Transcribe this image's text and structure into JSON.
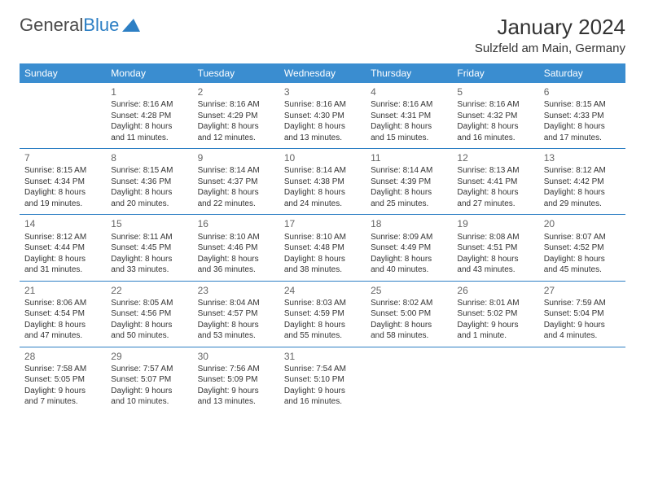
{
  "logo": {
    "textGray": "General",
    "textBlue": "Blue"
  },
  "title": "January 2024",
  "location": "Sulzfeld am Main, Germany",
  "colors": {
    "headerBg": "#3a8dd0",
    "headerText": "#ffffff",
    "cellBorder": "#2d7fc4",
    "dayNum": "#666666",
    "bodyText": "#333333"
  },
  "weekdays": [
    "Sunday",
    "Monday",
    "Tuesday",
    "Wednesday",
    "Thursday",
    "Friday",
    "Saturday"
  ],
  "weeks": [
    [
      null,
      {
        "n": "1",
        "sr": "8:16 AM",
        "ss": "4:28 PM",
        "dl": "8 hours and 11 minutes."
      },
      {
        "n": "2",
        "sr": "8:16 AM",
        "ss": "4:29 PM",
        "dl": "8 hours and 12 minutes."
      },
      {
        "n": "3",
        "sr": "8:16 AM",
        "ss": "4:30 PM",
        "dl": "8 hours and 13 minutes."
      },
      {
        "n": "4",
        "sr": "8:16 AM",
        "ss": "4:31 PM",
        "dl": "8 hours and 15 minutes."
      },
      {
        "n": "5",
        "sr": "8:16 AM",
        "ss": "4:32 PM",
        "dl": "8 hours and 16 minutes."
      },
      {
        "n": "6",
        "sr": "8:15 AM",
        "ss": "4:33 PM",
        "dl": "8 hours and 17 minutes."
      }
    ],
    [
      {
        "n": "7",
        "sr": "8:15 AM",
        "ss": "4:34 PM",
        "dl": "8 hours and 19 minutes."
      },
      {
        "n": "8",
        "sr": "8:15 AM",
        "ss": "4:36 PM",
        "dl": "8 hours and 20 minutes."
      },
      {
        "n": "9",
        "sr": "8:14 AM",
        "ss": "4:37 PM",
        "dl": "8 hours and 22 minutes."
      },
      {
        "n": "10",
        "sr": "8:14 AM",
        "ss": "4:38 PM",
        "dl": "8 hours and 24 minutes."
      },
      {
        "n": "11",
        "sr": "8:14 AM",
        "ss": "4:39 PM",
        "dl": "8 hours and 25 minutes."
      },
      {
        "n": "12",
        "sr": "8:13 AM",
        "ss": "4:41 PM",
        "dl": "8 hours and 27 minutes."
      },
      {
        "n": "13",
        "sr": "8:12 AM",
        "ss": "4:42 PM",
        "dl": "8 hours and 29 minutes."
      }
    ],
    [
      {
        "n": "14",
        "sr": "8:12 AM",
        "ss": "4:44 PM",
        "dl": "8 hours and 31 minutes."
      },
      {
        "n": "15",
        "sr": "8:11 AM",
        "ss": "4:45 PM",
        "dl": "8 hours and 33 minutes."
      },
      {
        "n": "16",
        "sr": "8:10 AM",
        "ss": "4:46 PM",
        "dl": "8 hours and 36 minutes."
      },
      {
        "n": "17",
        "sr": "8:10 AM",
        "ss": "4:48 PM",
        "dl": "8 hours and 38 minutes."
      },
      {
        "n": "18",
        "sr": "8:09 AM",
        "ss": "4:49 PM",
        "dl": "8 hours and 40 minutes."
      },
      {
        "n": "19",
        "sr": "8:08 AM",
        "ss": "4:51 PM",
        "dl": "8 hours and 43 minutes."
      },
      {
        "n": "20",
        "sr": "8:07 AM",
        "ss": "4:52 PM",
        "dl": "8 hours and 45 minutes."
      }
    ],
    [
      {
        "n": "21",
        "sr": "8:06 AM",
        "ss": "4:54 PM",
        "dl": "8 hours and 47 minutes."
      },
      {
        "n": "22",
        "sr": "8:05 AM",
        "ss": "4:56 PM",
        "dl": "8 hours and 50 minutes."
      },
      {
        "n": "23",
        "sr": "8:04 AM",
        "ss": "4:57 PM",
        "dl": "8 hours and 53 minutes."
      },
      {
        "n": "24",
        "sr": "8:03 AM",
        "ss": "4:59 PM",
        "dl": "8 hours and 55 minutes."
      },
      {
        "n": "25",
        "sr": "8:02 AM",
        "ss": "5:00 PM",
        "dl": "8 hours and 58 minutes."
      },
      {
        "n": "26",
        "sr": "8:01 AM",
        "ss": "5:02 PM",
        "dl": "9 hours and 1 minute."
      },
      {
        "n": "27",
        "sr": "7:59 AM",
        "ss": "5:04 PM",
        "dl": "9 hours and 4 minutes."
      }
    ],
    [
      {
        "n": "28",
        "sr": "7:58 AM",
        "ss": "5:05 PM",
        "dl": "9 hours and 7 minutes."
      },
      {
        "n": "29",
        "sr": "7:57 AM",
        "ss": "5:07 PM",
        "dl": "9 hours and 10 minutes."
      },
      {
        "n": "30",
        "sr": "7:56 AM",
        "ss": "5:09 PM",
        "dl": "9 hours and 13 minutes."
      },
      {
        "n": "31",
        "sr": "7:54 AM",
        "ss": "5:10 PM",
        "dl": "9 hours and 16 minutes."
      },
      null,
      null,
      null
    ]
  ],
  "labels": {
    "sunrise": "Sunrise:",
    "sunset": "Sunset:",
    "daylight": "Daylight:"
  }
}
